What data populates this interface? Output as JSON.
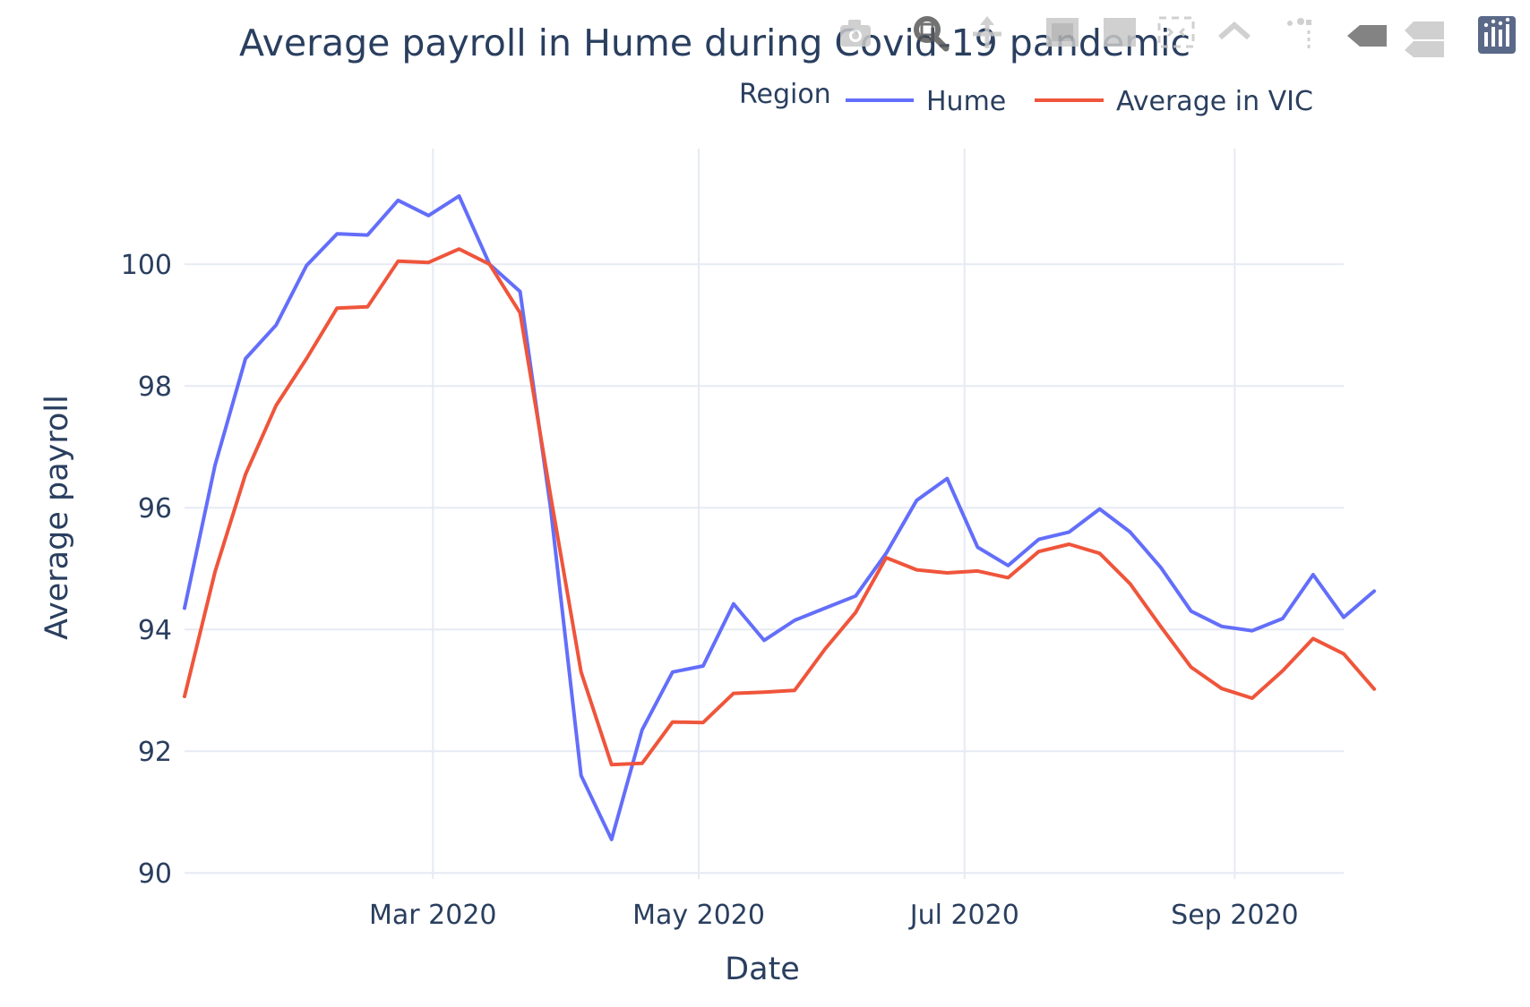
{
  "chart_data": {
    "type": "line",
    "title": "Average payroll in Hume during Covid-19 pandemic",
    "xlabel": "Date",
    "ylabel": "Average payroll",
    "x_start": "2020-01-04",
    "x_step_days": 7,
    "x_range": [
      "2020-01-04",
      "2020-09-26"
    ],
    "ylim": [
      89.9,
      101.9
    ],
    "y_ticks": [
      90,
      92,
      94,
      96,
      98,
      100
    ],
    "y_tick_labels": [
      "90",
      "92",
      "94",
      "96",
      "98",
      "100"
    ],
    "x_tick_dates": [
      "2020-03-01",
      "2020-05-01",
      "2020-07-01",
      "2020-09-01"
    ],
    "x_tick_labels": [
      "Mar 2020",
      "May 2020",
      "Jul 2020",
      "Sep 2020"
    ],
    "grid": true,
    "legend": {
      "title": "Region",
      "placement": "top-right",
      "orientation": "horizontal"
    },
    "series": [
      {
        "name": "Hume",
        "color": "#636efa",
        "values": [
          94.35,
          96.7,
          98.45,
          99.0,
          99.98,
          100.5,
          100.48,
          101.05,
          100.8,
          101.12,
          100.0,
          99.55,
          96.0,
          91.6,
          90.55,
          92.35,
          93.3,
          93.4,
          94.42,
          93.82,
          94.15,
          94.35,
          94.55,
          95.25,
          96.12,
          96.48,
          95.35,
          95.05,
          95.48,
          95.6,
          95.98,
          95.6,
          95.02,
          94.3,
          94.05,
          93.98,
          94.18,
          94.9,
          94.2,
          94.63
        ]
      },
      {
        "name": "Average in VIC",
        "color": "#ef553b",
        "values": [
          92.9,
          94.95,
          96.55,
          97.68,
          98.45,
          99.28,
          99.3,
          100.05,
          100.03,
          100.25,
          100.0,
          99.2,
          96.2,
          93.3,
          91.78,
          91.8,
          92.48,
          92.47,
          92.95,
          92.97,
          93.0,
          93.68,
          94.28,
          95.18,
          94.98,
          94.93,
          94.96,
          94.85,
          95.28,
          95.4,
          95.25,
          94.75,
          94.05,
          93.38,
          93.03,
          92.87,
          93.32,
          93.85,
          93.6,
          93.02
        ]
      }
    ]
  },
  "modebar": {
    "icons": [
      "camera-icon",
      "zoom-icon",
      "pan-icon",
      "box-select-icon",
      "lasso-select-icon",
      "zoom-in-icon",
      "zoom-out-icon",
      "autoscale-icon",
      "reset-axes-icon",
      "spike-lines-icon",
      "hover-closest-icon",
      "hover-compare-icon",
      "plotly-logo-icon"
    ]
  }
}
